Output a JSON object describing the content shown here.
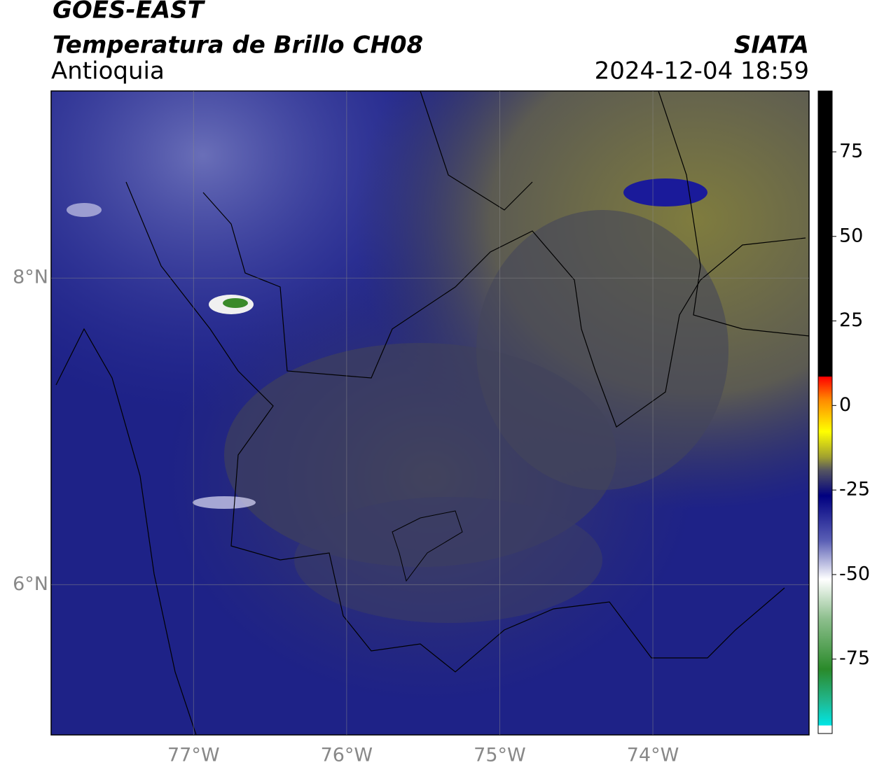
{
  "header": {
    "title": "GOES-EAST",
    "subtitle": "Temperatura de Brillo CH08",
    "region": "Antioquia",
    "source": "SIATA",
    "datetime": "2024-12-04 18:59"
  },
  "map": {
    "lonlim": [
      -77.93,
      -72.98
    ],
    "latlim": [
      5.02,
      9.22
    ],
    "lonticks": [
      {
        "value": -77,
        "label": "77°W"
      },
      {
        "value": -76,
        "label": "76°W"
      },
      {
        "value": -75,
        "label": "75°W"
      },
      {
        "value": -74,
        "label": "74°W"
      }
    ],
    "latticks": [
      {
        "value": 8,
        "label": "8°N"
      },
      {
        "value": 6,
        "label": "6°N"
      }
    ],
    "grid": true
  },
  "colorbar": {
    "lim": [
      -97,
      93
    ],
    "ticks": [
      75,
      50,
      25,
      0,
      -25,
      -50,
      -75
    ]
  }
}
